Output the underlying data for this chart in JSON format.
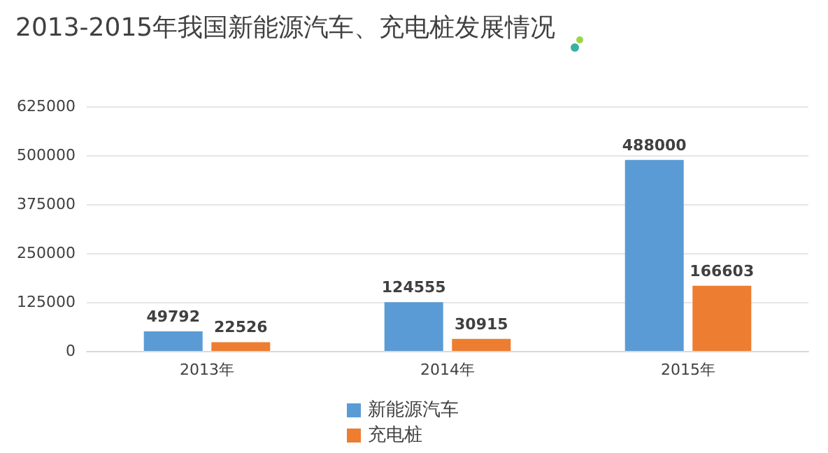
{
  "chart_data": {
    "type": "bar",
    "title": "2013-2015年我国新能源汽车、充电桩发展情况",
    "categories": [
      "2013年",
      "2014年",
      "2015年"
    ],
    "series": [
      {
        "name": "新能源汽车",
        "color": "#5b9bd5",
        "values": [
          49792,
          124555,
          488000
        ]
      },
      {
        "name": "充电桩",
        "color": "#ed7d31",
        "values": [
          22526,
          30915,
          166603
        ]
      }
    ],
    "ylim": [
      0,
      625000
    ],
    "yticks": [
      0,
      125000,
      250000,
      375000,
      500000,
      625000
    ],
    "grid": "y",
    "legend": "bottom",
    "data_labels": true
  }
}
